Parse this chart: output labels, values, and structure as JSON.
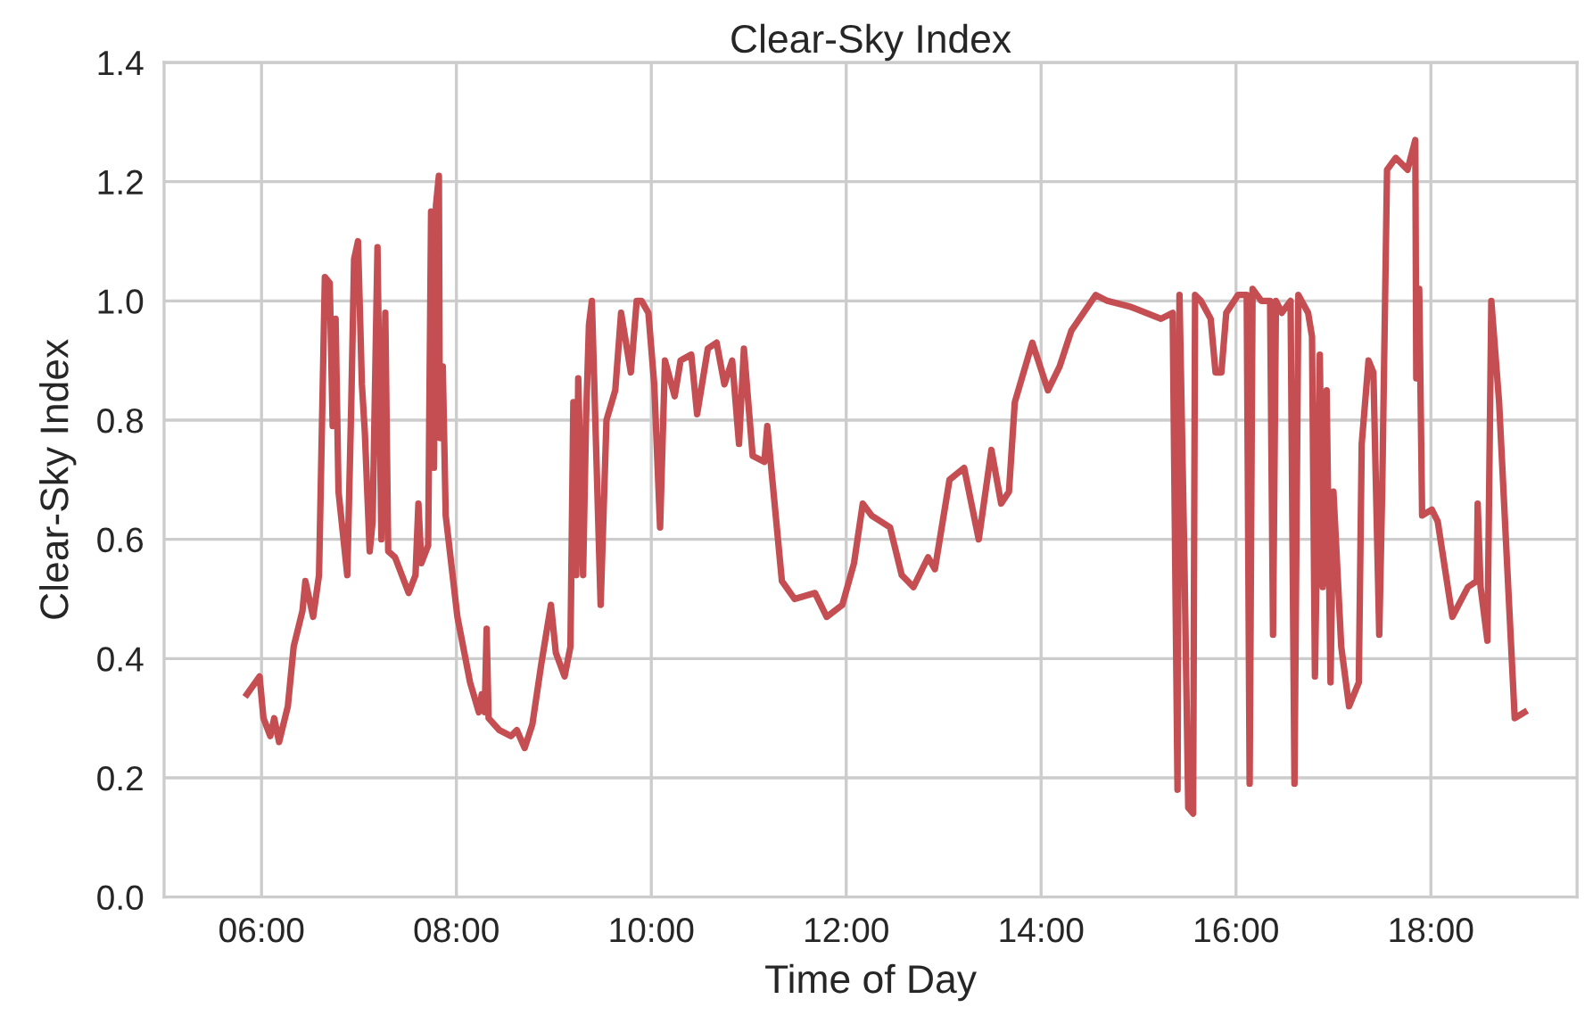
{
  "chart_data": {
    "type": "line",
    "title": "Clear-Sky Index",
    "xlabel": "Time of Day",
    "ylabel": "Clear-Sky Index",
    "x": [
      5.85,
      5.98,
      6.02,
      6.09,
      6.13,
      6.18,
      6.27,
      6.33,
      6.42,
      6.45,
      6.53,
      6.59,
      6.65,
      6.7,
      6.73,
      6.76,
      6.79,
      6.88,
      6.92,
      6.95,
      6.99,
      7.03,
      7.06,
      7.11,
      7.14,
      7.19,
      7.23,
      7.27,
      7.3,
      7.37,
      7.51,
      7.58,
      7.61,
      7.64,
      7.71,
      7.74,
      7.77,
      7.79,
      7.82,
      7.83,
      7.86,
      7.89,
      8.01,
      8.14,
      8.23,
      8.26,
      8.29,
      8.31,
      8.33,
      8.44,
      8.56,
      8.62,
      8.7,
      8.78,
      8.87,
      8.97,
      9.02,
      9.11,
      9.17,
      9.2,
      9.23,
      9.25,
      9.3,
      9.33,
      9.36,
      9.39,
      9.48,
      9.54,
      9.63,
      9.69,
      9.79,
      9.85,
      9.9,
      9.97,
      10.03,
      10.09,
      10.14,
      10.24,
      10.3,
      10.41,
      10.47,
      10.58,
      10.67,
      10.75,
      10.83,
      10.9,
      10.95,
      11.04,
      11.16,
      11.19,
      11.34,
      11.47,
      11.68,
      11.8,
      11.96,
      12.08,
      12.17,
      12.26,
      12.45,
      12.57,
      12.69,
      12.84,
      12.91,
      13.06,
      13.21,
      13.36,
      13.49,
      13.59,
      13.67,
      13.73,
      13.91,
      14.07,
      14.19,
      14.31,
      14.56,
      14.68,
      14.92,
      15.23,
      15.35,
      15.4,
      15.42,
      15.47,
      15.51,
      15.56,
      15.58,
      15.64,
      15.74,
      15.79,
      15.85,
      15.9,
      16.02,
      16.11,
      16.14,
      16.17,
      16.26,
      16.35,
      16.38,
      16.41,
      16.47,
      16.56,
      16.6,
      16.64,
      16.74,
      16.78,
      16.81,
      16.86,
      16.89,
      16.93,
      16.97,
      17.0,
      17.08,
      17.16,
      17.26,
      17.29,
      17.36,
      17.41,
      17.47,
      17.5,
      17.55,
      17.64,
      17.76,
      17.84,
      17.85,
      17.88,
      17.91,
      18.01,
      18.07,
      18.22,
      18.38,
      18.47,
      18.48,
      18.51,
      18.58,
      18.62,
      18.7,
      18.86,
      18.96
    ],
    "series": [
      {
        "color": "#c44e52",
        "values": [
          0.34,
          0.37,
          0.3,
          0.27,
          0.3,
          0.26,
          0.32,
          0.42,
          0.48,
          0.53,
          0.47,
          0.54,
          1.04,
          1.03,
          0.79,
          0.97,
          0.68,
          0.54,
          0.82,
          1.07,
          1.1,
          0.86,
          0.78,
          0.58,
          0.63,
          1.09,
          0.6,
          0.98,
          0.58,
          0.57,
          0.51,
          0.54,
          0.66,
          0.56,
          0.59,
          1.15,
          0.72,
          1.16,
          1.21,
          0.77,
          0.89,
          0.64,
          0.47,
          0.36,
          0.31,
          0.34,
          0.31,
          0.45,
          0.3,
          0.28,
          0.27,
          0.28,
          0.25,
          0.29,
          0.39,
          0.49,
          0.41,
          0.37,
          0.42,
          0.83,
          0.54,
          0.87,
          0.54,
          0.8,
          0.96,
          1.0,
          0.49,
          0.8,
          0.85,
          0.98,
          0.88,
          1.0,
          1.0,
          0.98,
          0.86,
          0.62,
          0.9,
          0.84,
          0.9,
          0.91,
          0.81,
          0.92,
          0.93,
          0.86,
          0.9,
          0.76,
          0.92,
          0.74,
          0.73,
          0.79,
          0.53,
          0.5,
          0.51,
          0.47,
          0.49,
          0.56,
          0.66,
          0.64,
          0.62,
          0.54,
          0.52,
          0.57,
          0.55,
          0.7,
          0.72,
          0.6,
          0.75,
          0.66,
          0.68,
          0.83,
          0.93,
          0.85,
          0.89,
          0.95,
          1.01,
          1.0,
          0.99,
          0.97,
          0.98,
          0.18,
          1.01,
          0.57,
          0.15,
          0.14,
          1.01,
          1.0,
          0.97,
          0.88,
          0.88,
          0.98,
          1.01,
          1.01,
          0.19,
          1.02,
          1.0,
          1.0,
          0.44,
          1.0,
          0.98,
          1.0,
          0.19,
          1.01,
          0.98,
          0.94,
          0.37,
          0.91,
          0.52,
          0.85,
          0.36,
          0.68,
          0.42,
          0.32,
          0.36,
          0.76,
          0.9,
          0.88,
          0.44,
          0.68,
          1.22,
          1.24,
          1.22,
          1.27,
          0.87,
          1.02,
          0.64,
          0.65,
          0.63,
          0.47,
          0.52,
          0.53,
          0.66,
          0.52,
          0.43,
          1.0,
          0.83,
          0.3,
          0.31
        ]
      }
    ],
    "xlim": [
      5,
      19.5
    ],
    "ylim": [
      0,
      1.4
    ],
    "xticks": [
      {
        "value": 6,
        "label": "06:00"
      },
      {
        "value": 8,
        "label": "08:00"
      },
      {
        "value": 10,
        "label": "10:00"
      },
      {
        "value": 12,
        "label": "12:00"
      },
      {
        "value": 14,
        "label": "14:00"
      },
      {
        "value": 16,
        "label": "16:00"
      },
      {
        "value": 18,
        "label": "18:00"
      }
    ],
    "yticks": [
      {
        "value": 0,
        "label": "0.0"
      },
      0.2,
      0.4,
      0.6,
      0.8,
      {
        "value": 1,
        "label": "1.0"
      },
      1.2,
      1.4
    ],
    "grid": true,
    "marker": "none",
    "line_style": "solid"
  }
}
